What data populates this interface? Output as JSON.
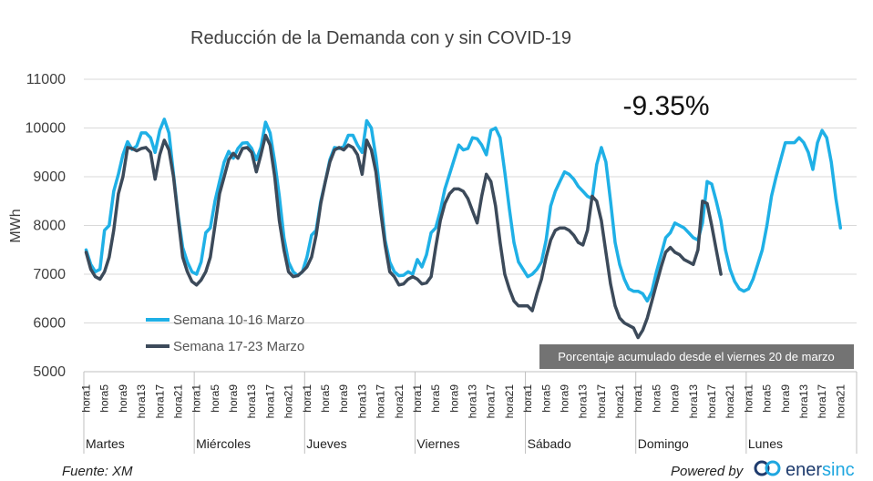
{
  "chart_data": {
    "type": "line",
    "title": "Reducción de la Demanda con y sin COVID-19",
    "ylabel": "MWh",
    "xlabel": "",
    "ylim": [
      5000,
      11000
    ],
    "yticks": [
      "11000",
      "10000",
      "9000",
      "8000",
      "7000",
      "6000",
      "5000"
    ],
    "ytick_values": [
      11000,
      10000,
      9000,
      8000,
      7000,
      6000,
      5000
    ],
    "grid": true,
    "hour_tick_labels": [
      "hora1",
      "hora5",
      "hora9",
      "hora13",
      "hora17",
      "hora21"
    ],
    "days": [
      "Martes",
      "Miércoles",
      "Jueves",
      "Viernes",
      "Sábado",
      "Domingo",
      "Lunes"
    ],
    "series": [
      {
        "name": "Semana 10-16 Marzo",
        "color": "#1fb0e6",
        "values": [
          [
            7500,
            7200,
            7050,
            7100,
            7900,
            8000,
            8700,
            9050,
            9450,
            9720,
            9560,
            9630,
            9900,
            9900,
            9800,
            9500,
            9950,
            10180,
            9900,
            9050,
            8200,
            7550,
            7250,
            7050
          ],
          [
            7000,
            7250,
            7850,
            7950,
            8500,
            8900,
            9300,
            9520,
            9380,
            9580,
            9690,
            9700,
            9580,
            9350,
            9600,
            10120,
            9900,
            9300,
            8600,
            7750,
            7250,
            7050,
            6970,
            7050
          ],
          [
            7350,
            7800,
            7900,
            8500,
            8900,
            9350,
            9600,
            9580,
            9620,
            9850,
            9850,
            9650,
            9500,
            10150,
            10000,
            9400,
            8600,
            7700,
            7250,
            7050,
            6970,
            6980,
            7050,
            7000
          ],
          [
            7300,
            7150,
            7400,
            7850,
            7950,
            8300,
            8750,
            9050,
            9350,
            9650,
            9550,
            9580,
            9800,
            9780,
            9650,
            9450,
            9950,
            10000,
            9800,
            9100,
            8350,
            7650,
            7250,
            7100
          ],
          [
            6950,
            7000,
            7100,
            7250,
            7700,
            8400,
            8700,
            8900,
            9100,
            9050,
            8950,
            8800,
            8700,
            8600,
            8550,
            9250,
            9600,
            9300,
            8500,
            7650,
            7200,
            6900,
            6700,
            6650
          ],
          [
            6650,
            6600,
            6450,
            6650,
            7050,
            7400,
            7750,
            7850,
            8050,
            8000,
            7950,
            7850,
            7750,
            7700,
            8050,
            8900,
            8850,
            8500,
            8100,
            7500,
            7100,
            6850,
            6700,
            6650
          ],
          [
            6700,
            6900,
            7200,
            7500,
            8000,
            8600,
            9000,
            9350,
            9700,
            9700,
            9700,
            9800,
            9700,
            9500,
            9150,
            9700,
            9950,
            9800,
            9300,
            8550,
            7950
          ]
        ]
      },
      {
        "name": "Semana 17-23 Marzo",
        "color": "#3c4a5a",
        "values": [
          [
            7450,
            7100,
            6950,
            6900,
            7050,
            7350,
            7900,
            8650,
            9000,
            9600,
            9580,
            9530,
            9580,
            9600,
            9500,
            8950,
            9450,
            9750,
            9550,
            9000,
            8150,
            7350,
            7050,
            6850
          ],
          [
            6780,
            6880,
            7050,
            7350,
            8000,
            8650,
            9000,
            9350,
            9480,
            9380,
            9580,
            9600,
            9500,
            9100,
            9450,
            9850,
            9650,
            9000,
            8100,
            7500,
            7050,
            6950,
            6970,
            7050
          ],
          [
            7150,
            7350,
            7800,
            8450,
            8900,
            9300,
            9550,
            9600,
            9550,
            9650,
            9600,
            9450,
            9050,
            9750,
            9550,
            9100,
            8300,
            7600,
            7050,
            6950,
            6780,
            6800,
            6900,
            6950
          ],
          [
            6900,
            6800,
            6820,
            6950,
            7550,
            8100,
            8450,
            8650,
            8750,
            8750,
            8700,
            8550,
            8300,
            8050,
            8600,
            9050,
            8900,
            8400,
            7650,
            7000,
            6700,
            6450,
            6350,
            6350
          ],
          [
            6350,
            6250,
            6600,
            6900,
            7350,
            7700,
            7900,
            7950,
            7950,
            7900,
            7800,
            7650,
            7600,
            7900,
            8600,
            8500,
            8100,
            7450,
            6800,
            6350,
            6100,
            6000,
            5950,
            5900
          ],
          [
            5700,
            5850,
            6100,
            6450,
            6800,
            7150,
            7450,
            7550,
            7450,
            7400,
            7300,
            7250,
            7200,
            7500,
            8500,
            8450,
            8000,
            7500,
            7000
          ]
        ]
      }
    ],
    "annotation": "-9.35%",
    "note": "Porcentaje acumulado desde el viernes 20 de marzo"
  },
  "footer": {
    "source": "Fuente: XM",
    "powered_by": "Powered by",
    "brand_part1": "ener",
    "brand_part2": "sinc"
  }
}
